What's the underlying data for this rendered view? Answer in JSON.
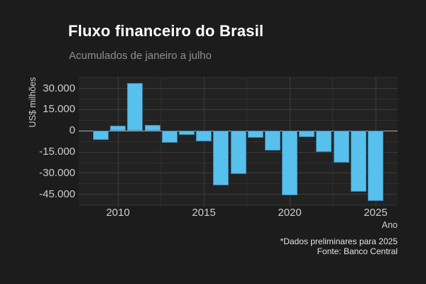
{
  "header": {
    "title": "Fluxo financeiro do Brasil",
    "subtitle": "Acumulados de janeiro a julho"
  },
  "caption": {
    "line1": "*Dados preliminares para 2025",
    "line2": "Fonte: Banco Central"
  },
  "colors": {
    "figure_bg": "#1c1c1c",
    "panel_bg": "#222222",
    "grid_major": "#3d3d3d",
    "grid_minor": "#2f2f2f",
    "zero_line": "#b0b0b0",
    "bar_fill": "#57c0ec",
    "bar_border": "#3e86ad",
    "title_text": "#ffffff",
    "subtitle_text": "#8f8f8f",
    "axis_text": "#cdcdcd",
    "caption_text": "#e3e3e3"
  },
  "chart_data": {
    "type": "bar",
    "title": "Fluxo financeiro do Brasil",
    "subtitle": "Acumulados de janeiro a julho",
    "xlabel": "Ano",
    "ylabel": "US$ milhões",
    "caption": [
      "*Dados preliminares para 2025",
      "Fonte: Banco Central"
    ],
    "x": [
      2009,
      2010,
      2011,
      2012,
      2013,
      2014,
      2015,
      2016,
      2017,
      2018,
      2019,
      2020,
      2021,
      2022,
      2023,
      2024,
      2025
    ],
    "values": [
      -6600,
      3800,
      34000,
      4300,
      -8400,
      -2900,
      -7300,
      -38400,
      -30500,
      -4900,
      -14100,
      -45600,
      -4500,
      -14700,
      -22600,
      -43100,
      -49800
    ],
    "series": [
      {
        "name": "Fluxo financeiro (US$ milhões)",
        "values": [
          -6600,
          3800,
          34000,
          4300,
          -8400,
          -2900,
          -7300,
          -38400,
          -30500,
          -4900,
          -14100,
          -45600,
          -4500,
          -14700,
          -22600,
          -43100,
          -49800
        ]
      }
    ],
    "ylim": [
      -53700,
      38400
    ],
    "xlim": [
      2007.72,
      2026.28
    ],
    "yticks": {
      "values": [
        30000,
        15000,
        0,
        -15000,
        -30000,
        -45000
      ],
      "labels": [
        "30.000",
        "15.000",
        "0",
        "-15.000",
        "-30.000",
        "-45.000"
      ]
    },
    "yticks_minor": [
      37500,
      22500,
      7500,
      -7500,
      -22500,
      -37500,
      -52500
    ],
    "xticks": {
      "values": [
        2010,
        2015,
        2020,
        2025
      ],
      "labels": [
        "2010",
        "2015",
        "2020",
        "2025"
      ]
    },
    "xticks_minor": [
      2012.5,
      2017.5,
      2022.5
    ],
    "grid": "major+minor, horizontal and vertical, dark theme",
    "legend": "none",
    "zero_line": true,
    "bar_color": "#57c0ec"
  }
}
